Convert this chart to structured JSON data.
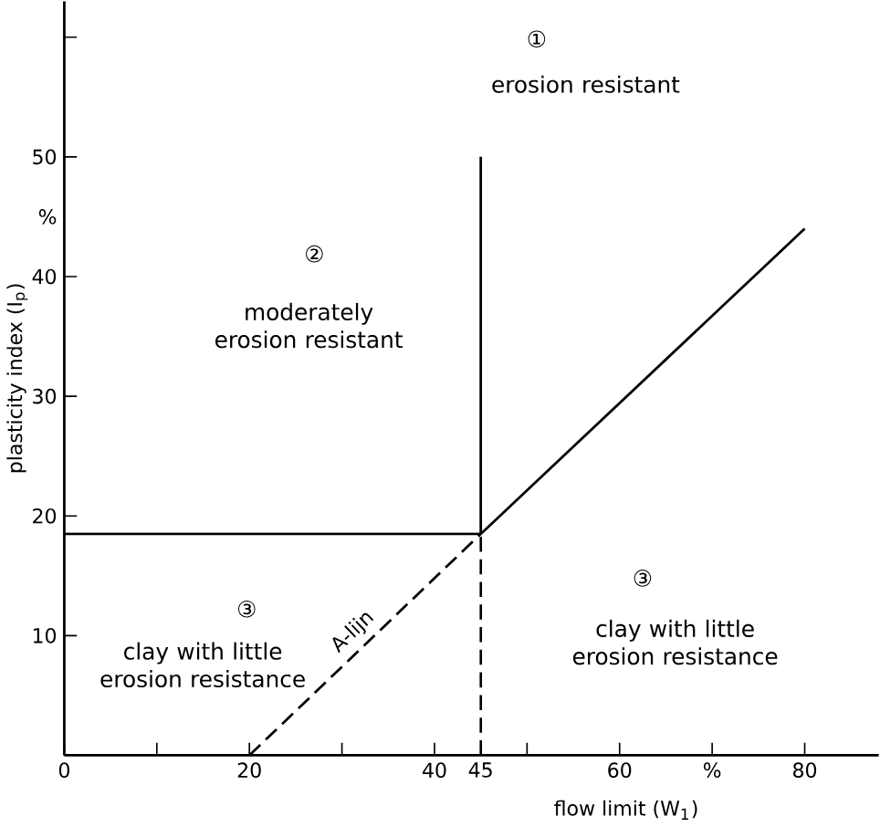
{
  "chart_data": {
    "type": "line",
    "xlabel": "flow limit (W$_{1}$)",
    "ylabel": "plasticity index (I$_{p}$)",
    "xlim": [
      0,
      88
    ],
    "ylim": [
      0,
      63
    ],
    "xticks": [
      0,
      {
        "value": 10,
        "label": null
      },
      20,
      {
        "value": 30,
        "label": null
      },
      40,
      45,
      {
        "value": 50,
        "label": null
      },
      60,
      {
        "value": 70,
        "label": "%"
      },
      80
    ],
    "yticks": [
      10,
      20,
      30,
      40,
      {
        "value": 45,
        "label": "%"
      },
      50,
      {
        "value": 60,
        "label": null
      }
    ],
    "grid": false,
    "legend": false,
    "marker": "none",
    "series": [
      {
        "name": "A-lijn",
        "color": "#000000",
        "line_style": "dashed",
        "x": [
          20,
          45
        ],
        "values": [
          0,
          18.5
        ]
      },
      {
        "color": "#000000",
        "line_style": "solid",
        "x": [
          45,
          80
        ],
        "values": [
          18.5,
          44
        ]
      },
      {
        "color": "#000000",
        "line_style": "solid",
        "x": [
          0,
          45
        ],
        "values": [
          18.5,
          18.5
        ]
      },
      {
        "color": "#000000",
        "line_style": "solid",
        "x": [
          45,
          45
        ],
        "values": [
          18.5,
          50
        ]
      },
      {
        "color": "#000000",
        "line_style": "dashed",
        "x": [
          45,
          45
        ],
        "values": [
          0,
          18.5
        ]
      }
    ],
    "annotations": [
      "①",
      "erosion resistant",
      "②",
      "moderately erosion resistant",
      "③",
      "clay with little erosion resistance",
      "③",
      "clay with little erosion resistance"
    ]
  }
}
